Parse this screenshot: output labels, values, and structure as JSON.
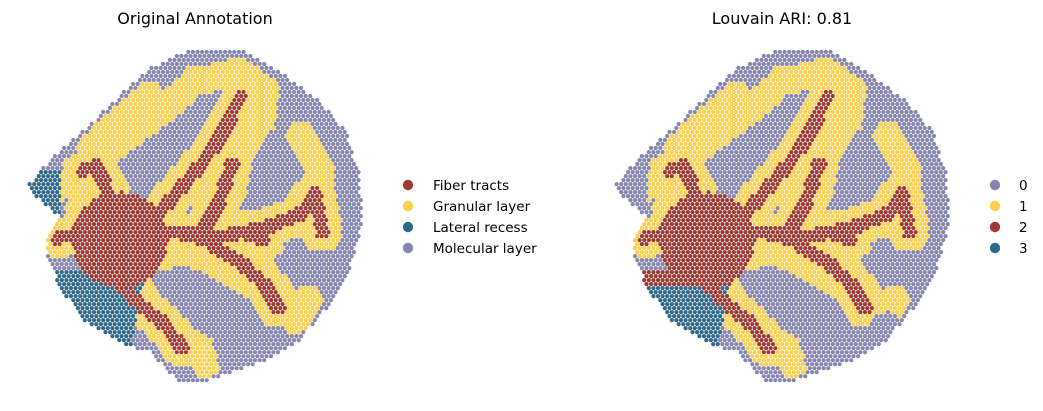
{
  "chart_data": [
    {
      "type": "scatter",
      "title": "Original Annotation",
      "axes_visible": false,
      "grid": false,
      "legend_position": "right",
      "categories": [
        "Fiber tracts",
        "Granular layer",
        "Lateral recess",
        "Molecular layer"
      ],
      "colors": {
        "Fiber tracts": "#9b3a33",
        "Granular layer": "#fbd04e",
        "Lateral recess": "#30688a",
        "Molecular layer": "#8585b0"
      },
      "approx_spot_share": {
        "Fiber tracts": 0.19,
        "Granular layer": 0.25,
        "Lateral recess": 0.05,
        "Molecular layer": 0.51
      }
    },
    {
      "type": "scatter",
      "title": "Louvain ARI: 0.81",
      "axes_visible": false,
      "grid": false,
      "legend_position": "right",
      "categories": [
        "0",
        "1",
        "2",
        "3"
      ],
      "colors": {
        "0": "#8585b0",
        "1": "#fbd04e",
        "2": "#9b3a33",
        "3": "#30688a"
      },
      "metric": {
        "name": "ARI",
        "value": 0.81
      },
      "approx_spot_share": {
        "0": 0.52,
        "1": 0.26,
        "2": 0.18,
        "3": 0.04
      }
    }
  ]
}
